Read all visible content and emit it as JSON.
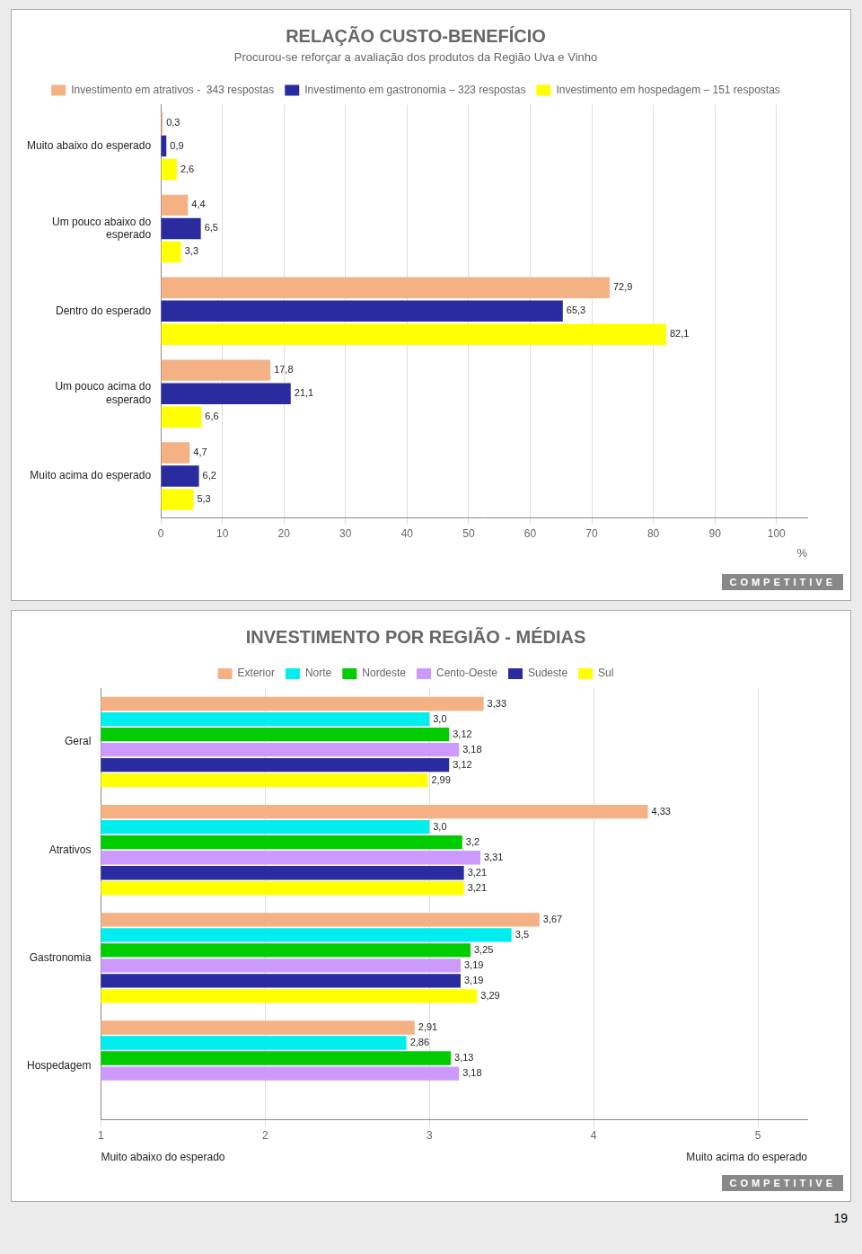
{
  "chart_data": [
    {
      "type": "bar",
      "orientation": "horizontal",
      "title": "RELAÇÃO CUSTO-BENEFÍCIO",
      "subtitle": "Procurou-se reforçar a avaliação dos produtos da Região Uva e Vinho",
      "xlabel": "%",
      "categories": [
        "Muito abaixo do esperado",
        "Um pouco abaixo do\nesperado",
        "Dentro do esperado",
        "Um pouco acima do\nesperado",
        "Muito acima do esperado"
      ],
      "series": [
        {
          "name": "Investimento em atrativos -  343 respostas",
          "color": "#F4B183",
          "values": [
            0.3,
            4.4,
            72.9,
            17.8,
            4.7
          ],
          "value_labels": [
            "0,3",
            "4,4",
            "72,9",
            "17,8",
            "4,7"
          ]
        },
        {
          "name": "Investimento em gastronomia – 323 respostas",
          "color": "#2B2BA0",
          "values": [
            0.9,
            6.5,
            65.3,
            21.1,
            6.2
          ],
          "value_labels": [
            "0,9",
            "6,5",
            "65,3",
            "21,1",
            "6,2"
          ]
        },
        {
          "name": "Investimento em hospedagem – 151 respostas",
          "color": "#FFFF00",
          "values": [
            2.6,
            3.3,
            82.1,
            6.6,
            5.3
          ],
          "value_labels": [
            "2,6",
            "3,3",
            "82,1",
            "6,6",
            "5,3"
          ]
        }
      ],
      "xlim": [
        0,
        105
      ],
      "xticks": [
        0,
        10,
        20,
        30,
        40,
        50,
        60,
        70,
        80,
        90,
        100
      ],
      "grid": true,
      "legend": "top",
      "data_labels": true,
      "annotations": [
        "COMPETITIVE"
      ]
    },
    {
      "type": "bar",
      "orientation": "horizontal",
      "title": "INVESTIMENTO POR REGIÃO - MÉDIAS",
      "xlabel": [
        "Muito abaixo do esperado",
        "Muito acima do esperado"
      ],
      "categories": [
        "Geral",
        "Atrativos",
        "Gastronomia",
        "Hospedagem"
      ],
      "series": [
        {
          "name": "Exterior",
          "color": "#F4B183",
          "values": [
            3.33,
            4.33,
            3.67,
            2.91
          ],
          "value_labels": [
            "3,33",
            "4,33",
            "3,67",
            "2,91"
          ]
        },
        {
          "name": "Norte",
          "color": "#00EEEE",
          "values": [
            3.0,
            3.0,
            3.5,
            2.86
          ],
          "value_labels": [
            "3,0",
            "3,0",
            "3,5",
            "2,86"
          ]
        },
        {
          "name": "Nordeste",
          "color": "#00CC00",
          "values": [
            3.12,
            3.2,
            3.25,
            3.13
          ],
          "value_labels": [
            "3,12",
            "3,2",
            "3,25",
            "3,13"
          ]
        },
        {
          "name": "Cento-Oeste",
          "color": "#CC99FF",
          "values": [
            3.18,
            3.31,
            3.19,
            3.18
          ],
          "value_labels": [
            "3,18",
            "3,31",
            "3,19",
            "3,18"
          ]
        },
        {
          "name": "Sudeste",
          "color": "#2B2BA0",
          "values": [
            3.12,
            3.21,
            3.19,
            null
          ],
          "value_labels": [
            "3,12",
            "3,21",
            "3,19",
            null
          ]
        },
        {
          "name": "Sul",
          "color": "#FFFF00",
          "values": [
            2.99,
            3.21,
            3.29,
            null
          ],
          "value_labels": [
            "2,99",
            "3,21",
            "3,29",
            null
          ]
        }
      ],
      "xlim": [
        1.0,
        5.3
      ],
      "xticks": [
        1,
        2,
        3,
        4,
        5
      ],
      "grid": true,
      "legend": "top",
      "data_labels": true,
      "annotations": [
        "COMPETITIVE",
        "19"
      ]
    }
  ]
}
